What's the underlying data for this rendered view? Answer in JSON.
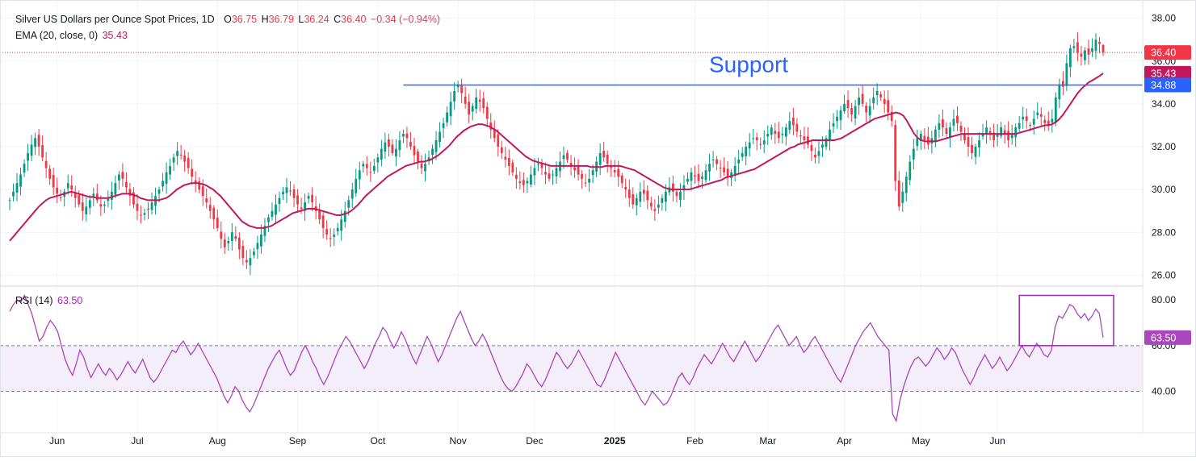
{
  "legend": {
    "symbol": "Silver US Dollars per Ounce Spot Prices, 1D",
    "open_label": "O",
    "open": "36.75",
    "high_label": "H",
    "high": "36.79",
    "low_label": "L",
    "low": "36.24",
    "close_label": "C",
    "close": "36.40",
    "change": "−0.34 (−0.94%)",
    "ema_label": "EMA (20, close, 0)",
    "ema_value": "35.43",
    "rsi_label": "RSI (14)",
    "rsi_value": "63.50"
  },
  "colors": {
    "up": "#089981",
    "down": "#f23645",
    "ema": "#c2185b",
    "support": "#2962ff",
    "rsi": "#9c27b0",
    "rsi_band": "#f3eefa",
    "grid": "#f0f3fa"
  },
  "chart_data": [
    {
      "type": "candlestick",
      "title": "Silver US Dollars per Ounce Spot Prices, 1D",
      "ylim": [
        25.6,
        38.4
      ],
      "y_ticks": [
        "38.00",
        "36.00",
        "34.00",
        "32.00",
        "30.00",
        "28.00",
        "26.00"
      ],
      "x_ticks": [
        "Jun",
        "Jul",
        "Aug",
        "Sep",
        "Oct",
        "Nov",
        "Dec",
        "2025",
        "Feb",
        "Mar",
        "Apr",
        "May",
        "Jun"
      ],
      "annotation": "Support",
      "support_level": 34.88,
      "price_labels": {
        "last": "36.40",
        "ema": "35.43",
        "support": "34.88"
      },
      "closes_start": 29.5,
      "closes": [
        29.5,
        29.9,
        30.3,
        30.7,
        31.2,
        31.7,
        32.1,
        32.4,
        32.0,
        31.5,
        31.0,
        30.5,
        30.1,
        29.8,
        29.6,
        29.9,
        30.3,
        30.0,
        29.6,
        29.3,
        29.0,
        29.2,
        29.5,
        29.8,
        29.5,
        29.2,
        29.3,
        29.6,
        29.9,
        30.3,
        30.7,
        30.5,
        30.1,
        29.7,
        29.3,
        29.0,
        28.8,
        28.9,
        29.1,
        29.4,
        29.7,
        30.0,
        30.4,
        30.8,
        31.1,
        31.5,
        31.8,
        31.6,
        31.3,
        31.0,
        30.6,
        30.3,
        30.0,
        29.7,
        29.4,
        29.0,
        28.6,
        28.2,
        27.7,
        27.3,
        27.6,
        28.0,
        27.7,
        27.2,
        26.8,
        26.6,
        26.8,
        27.1,
        27.5,
        27.9,
        28.3,
        28.7,
        29.0,
        29.3,
        29.6,
        29.9,
        30.1,
        29.9,
        29.6,
        29.3,
        29.1,
        29.4,
        29.7,
        29.4,
        29.0,
        28.6,
        28.2,
        27.9,
        27.7,
        27.9,
        28.2,
        28.6,
        29.0,
        29.5,
        30.0,
        30.5,
        30.9,
        31.2,
        31.0,
        30.8,
        31.1,
        31.5,
        31.9,
        32.2,
        32.0,
        31.7,
        31.9,
        32.3,
        32.6,
        32.4,
        32.0,
        31.6,
        31.3,
        31.0,
        31.2,
        31.5,
        31.9,
        32.3,
        32.7,
        33.1,
        33.6,
        34.1,
        34.6,
        34.9,
        34.5,
        34.0,
        33.5,
        33.9,
        34.3,
        34.1,
        33.8,
        33.3,
        32.8,
        32.4,
        32.0,
        31.7,
        31.4,
        31.1,
        30.8,
        30.5,
        30.3,
        30.2,
        30.4,
        30.7,
        31.0,
        31.2,
        31.0,
        30.7,
        30.5,
        30.7,
        31.0,
        31.3,
        31.6,
        31.4,
        31.1,
        30.9,
        30.7,
        30.5,
        30.3,
        30.5,
        30.9,
        31.3,
        31.7,
        31.5,
        31.2,
        31.0,
        30.8,
        30.6,
        30.3,
        30.0,
        29.6,
        29.3,
        29.6,
        29.9,
        29.8,
        29.5,
        29.2,
        29.0,
        29.3,
        29.6,
        29.9,
        30.1,
        29.9,
        29.7,
        29.9,
        30.2,
        30.5,
        30.8,
        30.6,
        30.4,
        30.6,
        30.9,
        31.2,
        31.4,
        31.2,
        31.0,
        30.8,
        30.6,
        30.8,
        31.1,
        31.4,
        31.7,
        32.0,
        32.2,
        32.4,
        32.3,
        32.1,
        32.3,
        32.6,
        32.9,
        32.6,
        32.4,
        32.6,
        32.9,
        33.2,
        33.0,
        32.7,
        32.5,
        32.3,
        32.1,
        31.8,
        31.5,
        31.8,
        32.1,
        32.4,
        32.8,
        33.1,
        33.4,
        33.7,
        34.0,
        33.8,
        33.5,
        33.9,
        34.3,
        34.0,
        33.6,
        33.9,
        34.3,
        34.6,
        34.3,
        34.0,
        33.6,
        33.2,
        30.4,
        29.2,
        29.9,
        30.6,
        31.3,
        31.9,
        32.4,
        32.6,
        32.3,
        32.1,
        32.4,
        32.8,
        33.1,
        32.9,
        32.6,
        32.9,
        33.3,
        33.1,
        32.7,
        32.3,
        32.0,
        31.7,
        32.0,
        32.3,
        32.6,
        32.9,
        32.6,
        32.3,
        32.6,
        32.9,
        32.6,
        32.3,
        32.6,
        32.9,
        33.1,
        33.4,
        33.2,
        33.0,
        33.3,
        33.6,
        33.4,
        33.1,
        33.0,
        33.3,
        34.3,
        34.9,
        34.8,
        35.9,
        36.6,
        36.7,
        36.4,
        36.2,
        36.5,
        36.3,
        36.6,
        37.0,
        36.8,
        36.4
      ],
      "ema_values": [
        27.6,
        27.8,
        28.0,
        28.2,
        28.4,
        28.6,
        28.8,
        29.0,
        29.2,
        29.35,
        29.5,
        29.6,
        29.65,
        29.7,
        29.75,
        29.8,
        29.85,
        29.9,
        29.85,
        29.8,
        29.75,
        29.7,
        29.65,
        29.65,
        29.6,
        29.6,
        29.6,
        29.6,
        29.65,
        29.7,
        29.75,
        29.8,
        29.8,
        29.8,
        29.75,
        29.7,
        29.6,
        29.55,
        29.5,
        29.5,
        29.5,
        29.5,
        29.55,
        29.6,
        29.7,
        29.85,
        30.0,
        30.1,
        30.2,
        30.25,
        30.3,
        30.3,
        30.3,
        30.25,
        30.2,
        30.1,
        30.0,
        29.85,
        29.7,
        29.5,
        29.3,
        29.1,
        28.9,
        28.7,
        28.5,
        28.4,
        28.3,
        28.25,
        28.2,
        28.2,
        28.2,
        28.25,
        28.3,
        28.4,
        28.5,
        28.6,
        28.7,
        28.8,
        28.9,
        28.95,
        29.0,
        29.05,
        29.1,
        29.1,
        29.1,
        29.05,
        29.0,
        28.95,
        28.9,
        28.85,
        28.8,
        28.8,
        28.85,
        28.9,
        29.0,
        29.15,
        29.3,
        29.5,
        29.7,
        29.85,
        30.0,
        30.15,
        30.3,
        30.45,
        30.6,
        30.7,
        30.8,
        30.9,
        31.0,
        31.1,
        31.15,
        31.2,
        31.25,
        31.3,
        31.3,
        31.35,
        31.4,
        31.5,
        31.6,
        31.75,
        31.9,
        32.05,
        32.25,
        32.45,
        32.6,
        32.75,
        32.85,
        32.95,
        33.0,
        33.05,
        33.05,
        33.0,
        32.95,
        32.85,
        32.75,
        32.6,
        32.45,
        32.3,
        32.15,
        32.0,
        31.85,
        31.7,
        31.55,
        31.45,
        31.35,
        31.3,
        31.25,
        31.2,
        31.15,
        31.1,
        31.1,
        31.1,
        31.1,
        31.1,
        31.1,
        31.1,
        31.1,
        31.1,
        31.1,
        31.1,
        31.05,
        31.05,
        31.05,
        31.05,
        31.1,
        31.1,
        31.1,
        31.1,
        31.1,
        31.05,
        31.0,
        30.95,
        30.9,
        30.8,
        30.7,
        30.6,
        30.5,
        30.4,
        30.3,
        30.2,
        30.1,
        30.05,
        30.0,
        30.0,
        30.0,
        30.0,
        30.0,
        30.0,
        30.05,
        30.1,
        30.15,
        30.2,
        30.25,
        30.3,
        30.35,
        30.4,
        30.45,
        30.55,
        30.6,
        30.65,
        30.7,
        30.75,
        30.8,
        30.85,
        30.9,
        30.95,
        31.05,
        31.15,
        31.25,
        31.35,
        31.45,
        31.55,
        31.65,
        31.75,
        31.85,
        31.95,
        32.0,
        32.1,
        32.15,
        32.2,
        32.25,
        32.3,
        32.3,
        32.3,
        32.3,
        32.3,
        32.3,
        32.3,
        32.35,
        32.4,
        32.5,
        32.6,
        32.7,
        32.8,
        32.9,
        33.0,
        33.1,
        33.2,
        33.3,
        33.35,
        33.4,
        33.45,
        33.5,
        33.55,
        33.6,
        33.55,
        33.45,
        33.2,
        32.9,
        32.6,
        32.4,
        32.3,
        32.25,
        32.25,
        32.25,
        32.25,
        32.3,
        32.35,
        32.4,
        32.45,
        32.5,
        32.55,
        32.6,
        32.6,
        32.6,
        32.6,
        32.6,
        32.6,
        32.6,
        32.6,
        32.6,
        32.6,
        32.6,
        32.6,
        32.6,
        32.6,
        32.6,
        32.6,
        32.65,
        32.7,
        32.75,
        32.8,
        32.85,
        32.9,
        32.95,
        33.0,
        33.0,
        33.05,
        33.15,
        33.3,
        33.5,
        33.75,
        34.0,
        34.25,
        34.5,
        34.7,
        34.85,
        35.0,
        35.1,
        35.2,
        35.3,
        35.43
      ]
    },
    {
      "type": "line",
      "title": "RSI (14)",
      "ylim": [
        25,
        85
      ],
      "y_ticks": [
        "80.00",
        "60.00",
        "40.00"
      ],
      "band": [
        40,
        60
      ],
      "last_label": "63.50",
      "values": [
        75,
        78,
        80,
        79,
        82,
        78,
        74,
        68,
        62,
        64,
        68,
        71,
        69,
        66,
        60,
        54,
        50,
        47,
        52,
        58,
        55,
        50,
        46,
        49,
        52,
        49,
        47,
        50,
        48,
        45,
        47,
        50,
        53,
        50,
        48,
        51,
        54,
        50,
        46,
        44,
        46,
        49,
        52,
        55,
        58,
        57,
        60,
        62,
        59,
        56,
        58,
        61,
        58,
        55,
        52,
        49,
        46,
        42,
        38,
        35,
        38,
        42,
        40,
        36,
        33,
        31,
        34,
        38,
        42,
        46,
        50,
        53,
        56,
        58,
        54,
        50,
        47,
        49,
        53,
        57,
        60,
        57,
        53,
        50,
        46,
        43,
        46,
        50,
        54,
        58,
        61,
        64,
        62,
        59,
        56,
        53,
        50,
        53,
        57,
        61,
        64,
        68,
        66,
        62,
        59,
        62,
        66,
        63,
        59,
        55,
        52,
        56,
        60,
        64,
        61,
        57,
        53,
        56,
        60,
        64,
        68,
        72,
        75,
        71,
        67,
        63,
        60,
        62,
        65,
        62,
        58,
        54,
        50,
        46,
        43,
        41,
        40,
        42,
        45,
        48,
        52,
        50,
        47,
        44,
        42,
        45,
        49,
        53,
        57,
        55,
        52,
        50,
        52,
        55,
        58,
        55,
        52,
        49,
        46,
        43,
        42,
        45,
        49,
        53,
        57,
        54,
        51,
        48,
        45,
        42,
        39,
        36,
        34,
        37,
        40,
        38,
        36,
        34,
        35,
        38,
        42,
        46,
        48,
        45,
        43,
        46,
        50,
        53,
        56,
        54,
        52,
        55,
        58,
        61,
        58,
        55,
        53,
        56,
        59,
        62,
        59,
        56,
        53,
        55,
        58,
        61,
        64,
        67,
        69,
        66,
        63,
        60,
        62,
        64,
        60,
        57,
        59,
        62,
        64,
        61,
        58,
        55,
        52,
        49,
        46,
        44,
        48,
        52,
        56,
        60,
        63,
        66,
        68,
        70,
        67,
        64,
        62,
        60,
        58,
        30,
        27,
        36,
        42,
        47,
        51,
        54,
        55,
        53,
        51,
        53,
        56,
        59,
        57,
        54,
        56,
        59,
        57,
        53,
        49,
        46,
        43,
        46,
        50,
        53,
        56,
        53,
        50,
        52,
        55,
        52,
        49,
        51,
        54,
        57,
        60,
        57,
        55,
        58,
        61,
        59,
        56,
        55,
        58,
        68,
        73,
        72,
        75,
        78,
        77,
        74,
        72,
        74,
        71,
        73,
        76,
        74,
        63.5
      ]
    }
  ]
}
